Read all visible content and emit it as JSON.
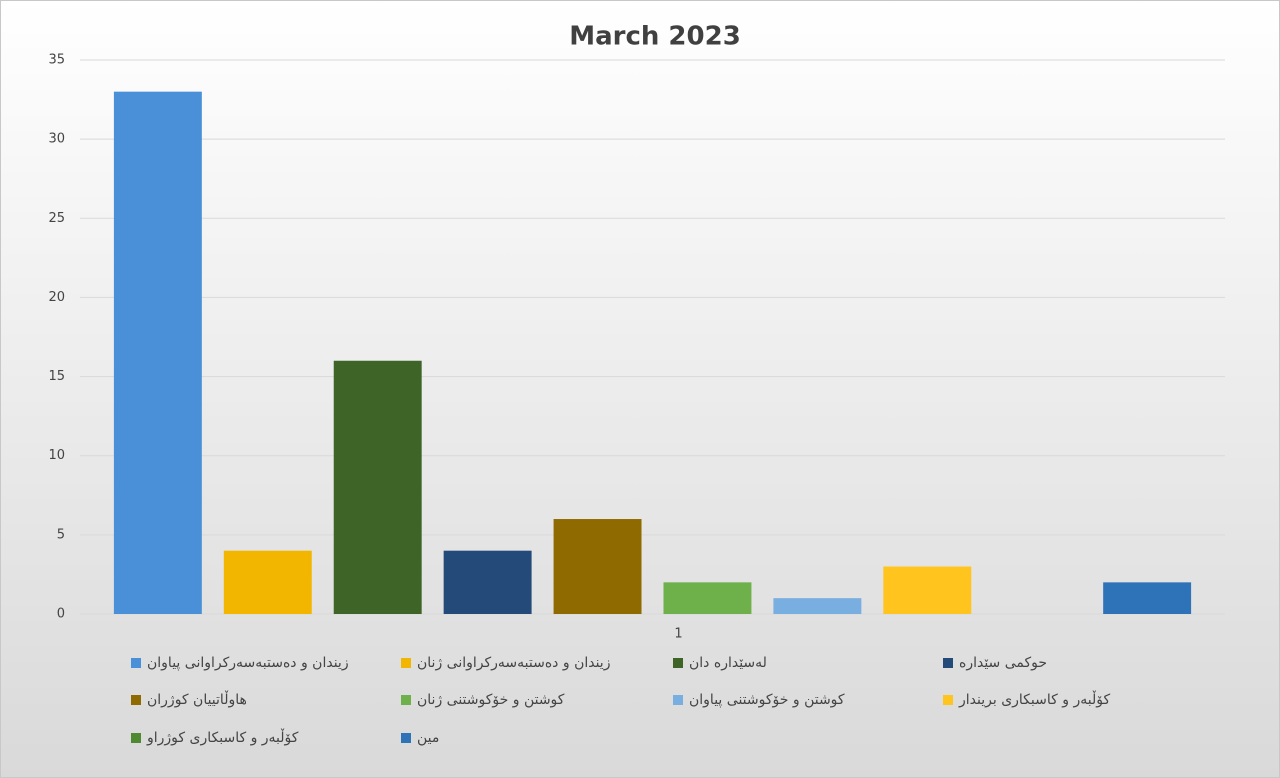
{
  "chart_data": {
    "type": "bar",
    "title": "March 2023",
    "categories": [
      "1"
    ],
    "series": [
      {
        "name": "زیندان و دەستبەسەرکراوانی پیاوان",
        "color": "#4a90d9",
        "values": [
          33
        ]
      },
      {
        "name": "زیندان و دەستبەسەرکراوانی ژنان",
        "color": "#f2b600",
        "values": [
          4
        ]
      },
      {
        "name": "لەسێدارە دان",
        "color": "#3f6428",
        "values": [
          16
        ]
      },
      {
        "name": "حوکمی سێدارە",
        "color": "#234a78",
        "values": [
          4
        ]
      },
      {
        "name": "هاوڵاتییان کوژران",
        "color": "#8f6a00",
        "values": [
          6
        ]
      },
      {
        "name": "کوشتن و خۆکوشتنی ژنان",
        "color": "#6eb04a",
        "values": [
          2
        ]
      },
      {
        "name": "کوشتن و خۆکوشتنی پیاوان",
        "color": "#78aee0",
        "values": [
          1
        ]
      },
      {
        "name": "کۆڵبەر و کاسبکاری بریندار",
        "color": "#ffc51e",
        "values": [
          3
        ]
      },
      {
        "name": "کۆڵبەر و کاسبکاری کوژراو",
        "color": "#4f8a30",
        "values": [
          0
        ]
      },
      {
        "name": "مین",
        "color": "#2e72b8",
        "values": [
          2
        ]
      }
    ],
    "ylim": [
      0,
      35
    ],
    "yticks": [
      0,
      5,
      10,
      15,
      20,
      25,
      30,
      35
    ],
    "grid": true,
    "legend": "bottom"
  }
}
